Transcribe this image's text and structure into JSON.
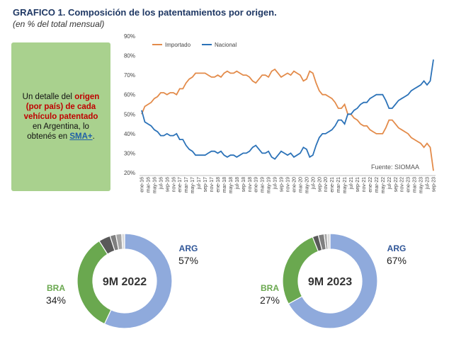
{
  "panel": {
    "text": [
      "Un detalle del ",
      "origen (por país) de cada vehículo patentado",
      " en Argentina, lo obtenés en ",
      "SMA+",
      "."
    ]
  },
  "chart_data": [
    {
      "type": "line",
      "title": "GRAFICO 1. Composición de los patentamientos por origen.",
      "subtitle": "(en % del total mensual)",
      "source": "Fuente: SIOMAA",
      "categories": [
        "ene-16",
        null,
        "mar-16",
        null,
        "may-16",
        null,
        "jul-16",
        null,
        "sep-16",
        null,
        "nov-16",
        null,
        "ene-17",
        null,
        "mar-17",
        null,
        "may-17",
        null,
        "jul-17",
        null,
        "sep-17",
        null,
        "nov-17",
        null,
        "ene-18",
        null,
        "mar-18",
        null,
        "may-18",
        null,
        "jul-18",
        null,
        "sep-18",
        null,
        "nov-18",
        null,
        "ene-19",
        null,
        "mar-19",
        null,
        "may-19",
        null,
        "jul-19",
        null,
        "sep-19",
        null,
        "nov-19",
        null,
        "ene-20",
        null,
        "mar-20",
        null,
        "may-20",
        null,
        "jul-20",
        null,
        "sep-20",
        null,
        "nov-20",
        null,
        "ene-21",
        null,
        "mar-21",
        null,
        "may-21",
        null,
        "jul-21",
        null,
        "sep-21",
        null,
        "nov-21",
        null,
        "ene-22",
        null,
        "mar-22",
        null,
        "may-22",
        null,
        "jul-22",
        null,
        "sep-22",
        null,
        "nov-22",
        null,
        "ene-23",
        null,
        "mar-23",
        null,
        "may-23",
        null,
        "jul-23",
        null,
        "sep-23"
      ],
      "series": [
        {
          "name": "Importado",
          "color": "#e38b4a",
          "values": [
            50,
            54,
            55,
            56,
            58,
            59,
            61,
            61,
            60,
            61,
            61,
            60,
            63,
            63,
            66,
            68,
            69,
            71,
            71,
            71,
            71,
            70,
            69,
            69,
            70,
            69,
            71,
            72,
            71,
            71,
            72,
            71,
            70,
            70,
            69,
            67,
            66,
            68,
            70,
            70,
            69,
            72,
            73,
            71,
            69,
            70,
            71,
            70,
            72,
            71,
            70,
            67,
            68,
            72,
            71,
            66,
            62,
            60,
            60,
            59,
            58,
            56,
            53,
            53,
            55,
            50,
            50,
            48,
            47,
            45,
            44,
            44,
            42,
            41,
            40,
            40,
            40,
            43,
            47,
            47,
            45,
            43,
            42,
            41,
            40,
            38,
            37,
            36,
            35,
            33,
            35,
            33,
            21
          ]
        },
        {
          "name": "Nacional",
          "color": "#2b72b8",
          "values": [
            52,
            46,
            45,
            44,
            42,
            41,
            39,
            39,
            40,
            39,
            39,
            40,
            37,
            37,
            34,
            32,
            31,
            29,
            29,
            29,
            29,
            30,
            31,
            31,
            30,
            31,
            29,
            28,
            29,
            29,
            28,
            29,
            30,
            30,
            31,
            33,
            34,
            32,
            30,
            30,
            31,
            28,
            27,
            29,
            31,
            30,
            29,
            30,
            28,
            29,
            30,
            33,
            32,
            28,
            29,
            34,
            38,
            40,
            40,
            41,
            42,
            44,
            47,
            47,
            45,
            50,
            50,
            52,
            53,
            55,
            56,
            56,
            58,
            59,
            60,
            60,
            60,
            57,
            53,
            53,
            55,
            57,
            58,
            59,
            60,
            62,
            63,
            64,
            65,
            67,
            65,
            67,
            78
          ]
        }
      ],
      "ylim": [
        20,
        90
      ],
      "yticks": [
        {
          "value": 20,
          "label": "20%"
        },
        {
          "value": 30,
          "label": "30%"
        },
        {
          "value": 40,
          "label": "40%"
        },
        {
          "value": 50,
          "label": "50%"
        },
        {
          "value": 60,
          "label": "60%"
        },
        {
          "value": 70,
          "label": "70%"
        },
        {
          "value": 80,
          "label": "80%"
        },
        {
          "value": 90,
          "label": "90%"
        }
      ],
      "grid": false
    },
    {
      "type": "donut",
      "center_label": "9M 2022",
      "categories": [
        "ARG",
        "BRA",
        null,
        null,
        null,
        null
      ],
      "values": [
        57,
        34,
        4,
        2,
        2,
        1
      ],
      "value_labels": [
        "57%",
        "34%",
        null,
        null,
        null,
        null
      ],
      "colors": [
        "#8faadc",
        "#6aa84f",
        "#595959",
        "#7f7f7f",
        "#a6a6a6",
        "#d9d9d9"
      ],
      "label_colors": [
        "#2f5597",
        "#6aa84f"
      ]
    },
    {
      "type": "donut",
      "center_label": "9M 2023",
      "categories": [
        "ARG",
        "BRA",
        null,
        null,
        null,
        null
      ],
      "values": [
        67,
        27,
        2,
        2,
        1,
        1
      ],
      "value_labels": [
        "67%",
        "27%",
        null,
        null,
        null,
        null
      ],
      "colors": [
        "#8faadc",
        "#6aa84f",
        "#595959",
        "#7f7f7f",
        "#a6a6a6",
        "#d9d9d9"
      ],
      "label_colors": [
        "#2f5597",
        "#6aa84f"
      ]
    }
  ]
}
